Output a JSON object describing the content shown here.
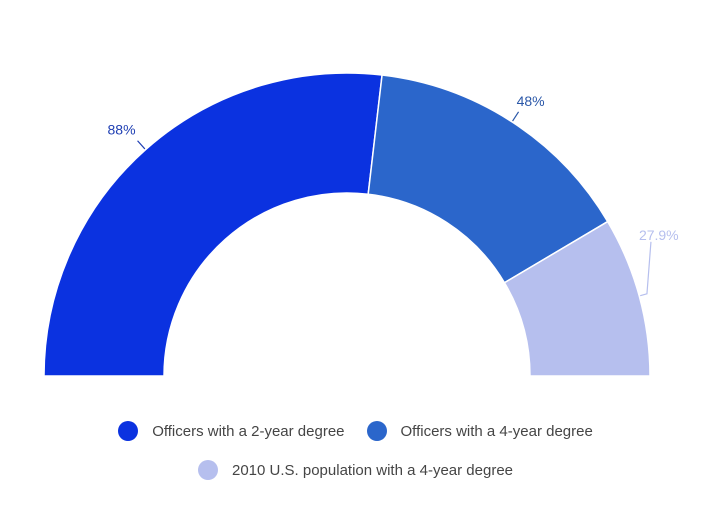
{
  "chart_data": {
    "type": "pie",
    "variant": "semi-donut",
    "categories": [
      "Officers with a 2-year degree",
      "Officers with a 4-year degree",
      "2010 U.S. population with a 4-year degree"
    ],
    "values": [
      88,
      48,
      27.9
    ],
    "value_labels": [
      "88%",
      "48%",
      "27.9%"
    ],
    "colors": [
      "#0b32e0",
      "#2b66cb",
      "#b6bfee"
    ],
    "label_colors": [
      "#1f3fb3",
      "#2a57a8",
      "#b6bfee"
    ],
    "legend_position": "bottom"
  },
  "legend": {
    "items": [
      {
        "label": "Officers with a 2-year degree",
        "color": "#0b32e0"
      },
      {
        "label": "Officers with a 4-year degree",
        "color": "#2b66cb"
      },
      {
        "label": "2010 U.S. population with a 4-year degree",
        "color": "#b6bfee"
      }
    ]
  }
}
